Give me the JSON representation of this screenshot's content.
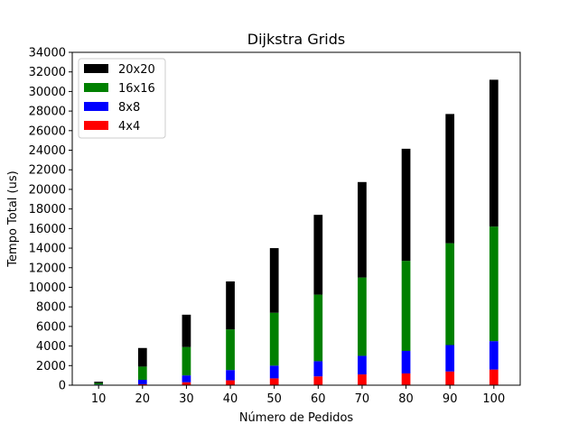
{
  "chart_data": {
    "type": "bar",
    "stacked": true,
    "title": "Dijkstra Grids",
    "xlabel": "Número de Pedidos",
    "ylabel": "Tempo Total (us)",
    "categories": [
      "10",
      "20",
      "30",
      "40",
      "50",
      "60",
      "70",
      "80",
      "90",
      "100"
    ],
    "ylim": [
      0,
      34000
    ],
    "yticks": [
      0,
      2000,
      4000,
      6000,
      8000,
      10000,
      12000,
      14000,
      16000,
      18000,
      20000,
      22000,
      24000,
      26000,
      28000,
      30000,
      32000,
      34000
    ],
    "legend_position": "top-left",
    "series": [
      {
        "name": "4x4",
        "color": "#ff0000",
        "values": [
          20,
          100,
          300,
          500,
          700,
          900,
          1100,
          1200,
          1400,
          1600
        ]
      },
      {
        "name": "8x8",
        "color": "#0000ff",
        "values": [
          50,
          450,
          700,
          1050,
          1300,
          1550,
          1900,
          2300,
          2700,
          2900
        ]
      },
      {
        "name": "16x16",
        "color": "#008000",
        "values": [
          150,
          1350,
          2900,
          4150,
          5400,
          6800,
          8000,
          9200,
          10400,
          11700
        ]
      },
      {
        "name": "20x20",
        "color": "#000000",
        "values": [
          130,
          1900,
          3300,
          4900,
          6600,
          8150,
          9750,
          11450,
          13200,
          15000
        ]
      }
    ]
  }
}
